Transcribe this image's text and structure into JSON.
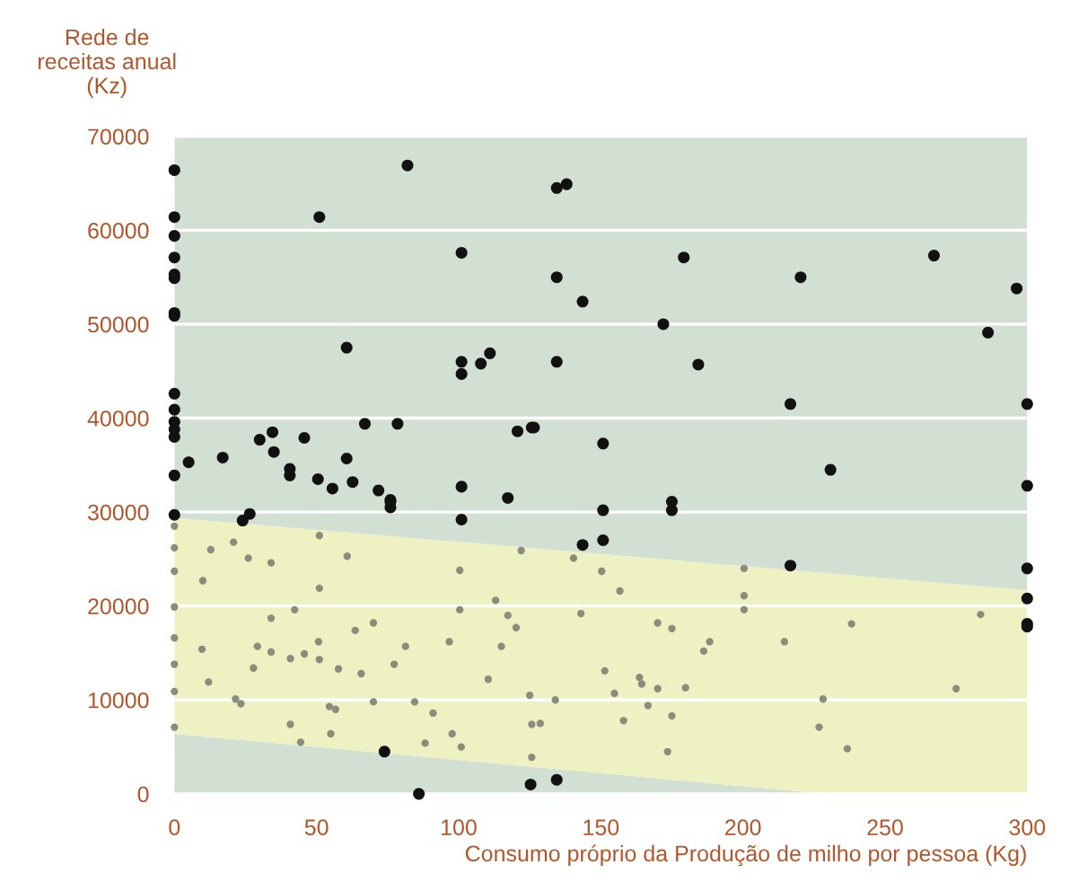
{
  "chart_data": {
    "type": "scatter",
    "ylabel": "Rede de\nreceitas anual\n(Kz)",
    "xlabel": "Consumo próprio da Produção de milho por pessoa (Kg)",
    "xlim": [
      0,
      300
    ],
    "ylim": [
      0,
      70000
    ],
    "xticks": [
      0,
      50,
      100,
      150,
      200,
      250,
      300
    ],
    "yticks": [
      0,
      10000,
      20000,
      30000,
      40000,
      50000,
      60000,
      70000
    ],
    "grid": "y",
    "stacked": true,
    "series": [
      {
        "type": "area",
        "color": "#d2dfd3",
        "x": [
          0,
          229,
          300
        ],
        "values": [
          6400,
          0,
          0
        ]
      },
      {
        "type": "area",
        "color": "#eef1c2",
        "x": [
          0,
          229,
          300
        ],
        "values": [
          23000,
          23500,
          21700
        ]
      },
      {
        "type": "area",
        "color": "#d2dfd3",
        "x": [
          0,
          229,
          300
        ],
        "values": [
          40600,
          46500,
          48300
        ]
      },
      {
        "color": "#8c8c7c",
        "marker": "circle",
        "x": [
          0,
          0,
          0,
          0,
          0,
          0,
          0,
          0,
          12.8,
          20.8,
          26,
          34,
          10,
          51,
          60.8,
          51,
          42.3,
          34,
          70,
          63.6,
          50.7,
          29.2,
          34,
          40.8,
          45.7,
          51,
          9.7,
          27.8,
          57.7,
          65.7,
          77.3,
          81.3,
          100.4,
          100.4,
          113,
          117.3,
          120.2,
          96.7,
          115,
          143,
          122,
          140.4,
          12,
          21.5,
          23.4,
          54.5,
          56.7,
          70,
          84.5,
          91,
          110.4,
          125,
          134,
          40.8,
          44.4,
          55,
          97.7,
          100.9,
          88.2,
          125.7,
          128.7,
          125.7,
          151.4,
          150.3,
          156.7,
          170,
          175,
          200.4,
          200.4,
          200.4,
          188.3,
          186.2,
          214.6,
          238.2,
          283.6,
          163.6,
          164.4,
          170,
          179.8,
          154.8,
          166.6,
          175,
          158,
          228.2,
          226.8,
          275,
          236.7,
          173.5
        ],
        "values": [
          28500,
          26200,
          23700,
          19900,
          16600,
          13800,
          10900,
          7100,
          26000,
          26800,
          25100,
          24600,
          22700,
          27500,
          25300,
          21900,
          19600,
          18700,
          18200,
          17400,
          16200,
          15700,
          15100,
          14400,
          14900,
          14300,
          15400,
          13400,
          13300,
          12800,
          13800,
          15700,
          23800,
          19600,
          20600,
          19000,
          17700,
          16200,
          15700,
          19200,
          25900,
          25100,
          11900,
          10100,
          9600,
          9300,
          9000,
          9800,
          9800,
          8600,
          12200,
          10500,
          10000,
          7400,
          5500,
          6400,
          6400,
          5000,
          5400,
          7400,
          7500,
          3900,
          13100,
          23700,
          21600,
          18200,
          17600,
          24000,
          21100,
          19600,
          16200,
          15200,
          16200,
          18100,
          19100,
          12400,
          11700,
          11200,
          11300,
          10700,
          9400,
          8300,
          7800,
          10100,
          7100,
          11200,
          4800,
          4500
        ]
      },
      {
        "color": "#111111",
        "marker": "circle",
        "x": [
          0,
          82,
          134.5,
          138,
          0,
          51,
          0,
          0,
          0,
          0,
          101,
          134.5,
          143.6,
          0,
          0,
          60.6,
          101,
          101,
          107.8,
          111,
          134.5,
          0,
          0,
          0,
          0,
          0,
          0,
          5,
          17,
          30,
          34.5,
          35,
          45.7,
          40.6,
          40.6,
          50.5,
          55.6,
          60.6,
          62.7,
          67,
          78.5,
          71.8,
          76,
          101,
          117.3,
          120.7,
          125.7,
          126.5,
          150.8,
          179.2,
          220.3,
          267.2,
          296.3,
          172,
          286.2,
          184.3,
          216.7,
          300,
          230.8,
          300,
          175,
          0,
          24,
          26.5,
          76,
          76,
          101,
          150.8,
          143.6,
          150.8,
          73.9,
          86,
          125.3,
          134.5,
          175,
          216.7,
          300,
          300,
          300,
          300
        ],
        "values": [
          66400,
          66900,
          64500,
          64900,
          61400,
          61400,
          59400,
          57100,
          55300,
          54900,
          57600,
          55000,
          52400,
          51200,
          50900,
          47500,
          46000,
          44700,
          45800,
          46900,
          46000,
          42600,
          40900,
          39600,
          38800,
          38000,
          33900,
          35300,
          35800,
          37700,
          38500,
          36400,
          37900,
          34600,
          33900,
          33500,
          32500,
          35700,
          33200,
          39400,
          39400,
          32300,
          31300,
          32700,
          31500,
          38600,
          39000,
          39000,
          37300,
          57100,
          55000,
          57300,
          53800,
          50000,
          49100,
          45700,
          41500,
          41500,
          34500,
          32800,
          31100,
          29700,
          29100,
          29800,
          31100,
          30500,
          29200,
          30200,
          26500,
          27000,
          4500,
          0,
          1000,
          1500,
          30200,
          24300,
          24000,
          20800,
          18100,
          17800
        ]
      }
    ]
  }
}
